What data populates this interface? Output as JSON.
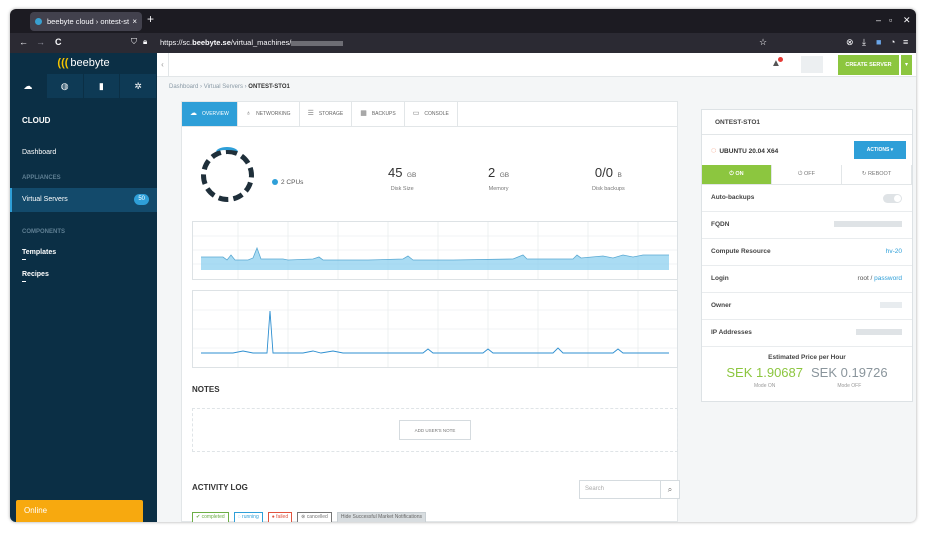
{
  "browser": {
    "tab_title": "beebyte cloud › ontest-st",
    "tab_close": "×",
    "new_tab": "+",
    "url_prefix": "https://sc.",
    "url_domain": "beebyte.se",
    "url_path": "/virtual_machines/",
    "back": "←",
    "forward": "→",
    "reload": "C",
    "window_controls": [
      "–",
      "▫",
      "✕"
    ]
  },
  "sidebar": {
    "logo": "beebyte",
    "section_title": "CLOUD",
    "dashboard": "Dashboard",
    "appliances_header": "APPLIANCES",
    "virtual_servers": "Virtual Servers",
    "virtual_servers_count": "50",
    "components_header": "COMPONENTS",
    "templates": "Templates",
    "recipes": "Recipes",
    "status": "Online"
  },
  "topbar": {
    "create_server": "CREATE SERVER",
    "create_caret": "▾",
    "collapse": "‹"
  },
  "breadcrumb": {
    "dashboard": "Dashboard",
    "sep": "›",
    "virtual_servers": "Virtual Servers",
    "current": "ONTEST-STO1"
  },
  "tabs": {
    "overview": "OVERVIEW",
    "networking": "NETWORKING",
    "storage": "STORAGE",
    "backups": "BACKUPS",
    "console": "CONSOLE"
  },
  "overview": {
    "cpus": "2 CPUs",
    "disk_size": {
      "value": "45",
      "unit": "GB",
      "label": "Disk Size"
    },
    "memory": {
      "value": "2",
      "unit": "GB",
      "label": "Memory"
    },
    "disk_backups": {
      "value": "0/0",
      "unit": "B",
      "label": "Disk backups"
    }
  },
  "notes": {
    "title": "NOTES",
    "add_button": "ADD USER'S NOTE"
  },
  "activity": {
    "title": "ACTIVITY LOG",
    "search_placeholder": "Search",
    "filters": {
      "completed": "completed",
      "running": "running",
      "failed": "failed",
      "cancelled": "cancelled",
      "hide": "Hide Successful Market Notifications"
    }
  },
  "server": {
    "name": "ONTEST-STO1",
    "os": "UBUNTU 20.04 X64",
    "actions": "ACTIONS ▾",
    "power": {
      "on": "ON",
      "off": "OFF",
      "reboot": "REBOOT"
    },
    "props": {
      "auto_backups": "Auto-backups",
      "fqdn": "FQDN",
      "compute_resource": "Compute Resource",
      "compute_resource_value": "hv-20",
      "login": "Login",
      "login_user": "root",
      "login_sep": " / ",
      "login_password": "password",
      "owner": "Owner",
      "ip_addresses": "IP Addresses"
    },
    "pricing": {
      "title": "Estimated Price per Hour",
      "on_value": "SEK 1.90687",
      "on_label": "Mode ON",
      "off_value": "SEK 0.19726",
      "off_label": "Mode OFF"
    }
  },
  "colors": {
    "accent_blue": "#2e9fd8",
    "accent_green": "#8cc63f",
    "sidebar": "#0b2f45",
    "online": "#f7a90f"
  },
  "icons": [
    "cloud-icon",
    "globe-icon",
    "bar-chart-icon",
    "gear-icon",
    "bell-icon",
    "ubuntu-icon",
    "power-icon",
    "search-icon"
  ]
}
